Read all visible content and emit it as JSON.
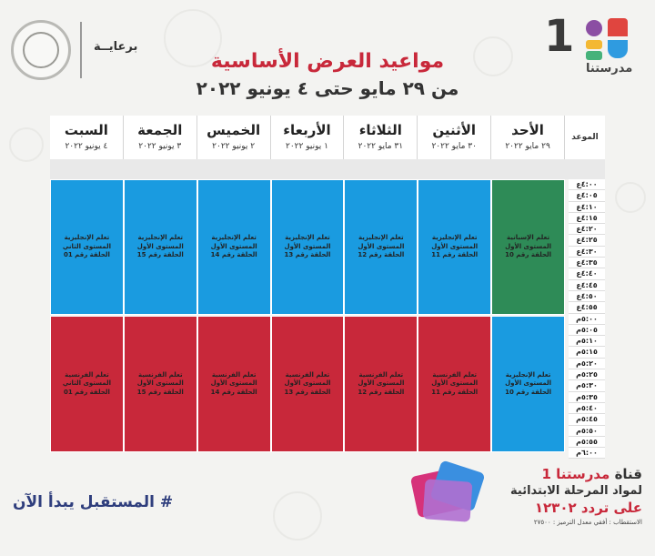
{
  "sponsor_label": "برعايــة",
  "brand": {
    "name": "مدرستنا",
    "number": "1"
  },
  "title": {
    "line1": "مواعيد العرض الأساسية",
    "line2": "من ٢٩ مايو حتى ٤ يونيو ٢٠٢٢"
  },
  "schedule": {
    "time_header": "الموعد",
    "days": [
      {
        "day": "الأحد",
        "date": "٢٩ مايو ٢٠٢٢"
      },
      {
        "day": "الأثنين",
        "date": "٣٠ مايو ٢٠٢٢"
      },
      {
        "day": "الثلاثاء",
        "date": "٣١ مايو ٢٠٢٢"
      },
      {
        "day": "الأربعاء",
        "date": "١ يونيو ٢٠٢٢"
      },
      {
        "day": "الخميس",
        "date": "٢ يونيو ٢٠٢٢"
      },
      {
        "day": "الجمعة",
        "date": "٣ يونيو ٢٠٢٢"
      },
      {
        "day": "السبت",
        "date": "٤ يونيو ٢٠٢٢"
      }
    ],
    "times": [
      "٤:٠٠ع",
      "٤:٠٥ع",
      "٤:١٠ع",
      "٤:١٥ع",
      "٤:٢٠ع",
      "٤:٢٥ع",
      "٤:٣٠ع",
      "٤:٣٥ع",
      "٤:٤٠ع",
      "٤:٤٥ع",
      "٤:٥٠ع",
      "٤:٥٥ع",
      "٥:٠٠م",
      "٥:٠٥م",
      "٥:١٠م",
      "٥:١٥م",
      "٥:٢٠م",
      "٥:٢٥م",
      "٥:٣٠م",
      "٥:٣٥م",
      "٥:٤٠م",
      "٥:٤٥م",
      "٥:٥٠م",
      "٥:٥٥م",
      "٦:٠٠م"
    ],
    "top_blocks": [
      {
        "lines": [
          "تعلم الإسبانية",
          "المستوى الأول",
          "الحلقة رقم 10"
        ],
        "color": "#2e8b57"
      },
      {
        "lines": [
          "تعلم الإنجليزية",
          "المستوى الأول",
          "الحلقة رقم 11"
        ],
        "color": "#1a9be0"
      },
      {
        "lines": [
          "تعلم الإنجليزية",
          "المستوى الأول",
          "الحلقة رقم 12"
        ],
        "color": "#1a9be0"
      },
      {
        "lines": [
          "تعلم الإنجليزية",
          "المستوى الأول",
          "الحلقة رقم 13"
        ],
        "color": "#1a9be0"
      },
      {
        "lines": [
          "تعلم الإنجليزية",
          "المستوى الأول",
          "الحلقة رقم 14"
        ],
        "color": "#1a9be0"
      },
      {
        "lines": [
          "تعلم الإنجليزية",
          "المستوى الأول",
          "الحلقة رقم 15"
        ],
        "color": "#1a9be0"
      },
      {
        "lines": [
          "تعلم الإنجليزية",
          "المستوى الثاني",
          "الحلقة رقم 01"
        ],
        "color": "#1a9be0"
      }
    ],
    "bottom_blocks": [
      {
        "lines": [
          "تعلم الإنجليزية",
          "المستوى الأول",
          "الحلقة رقم 10"
        ],
        "color": "#1a9be0"
      },
      {
        "lines": [
          "تعلم الفرنسية",
          "المستوى الأول",
          "الحلقة رقم 11"
        ],
        "color": "#c8283a"
      },
      {
        "lines": [
          "تعلم الفرنسية",
          "المستوى الأول",
          "الحلقة رقم 12"
        ],
        "color": "#c8283a"
      },
      {
        "lines": [
          "تعلم الفرنسية",
          "المستوى الأول",
          "الحلقة رقم 13"
        ],
        "color": "#c8283a"
      },
      {
        "lines": [
          "تعلم الفرنسية",
          "المستوى الأول",
          "الحلقة رقم 14"
        ],
        "color": "#c8283a"
      },
      {
        "lines": [
          "تعلم الفرنسية",
          "المستوى الأول",
          "الحلقة رقم 15"
        ],
        "color": "#c8283a"
      },
      {
        "lines": [
          "تعلم الفرنسية",
          "المستوى الثاني",
          "الحلقة رقم 01"
        ],
        "color": "#c8283a"
      }
    ]
  },
  "footer": {
    "hashtag": "# المستقبل يبدأ الآن",
    "channel_prefix": "قناة",
    "channel_name": "مدرستنا 1",
    "channel_line2": "لمواد المرحلة الابتدائية",
    "channel_line3": "على تردد ١٢٣٠٢",
    "channel_line4": "الاستقطاب : أفقي معدل الترميز : ٢٧٥٠٠"
  },
  "colors": {
    "accent_red": "#c8283a",
    "blue_block": "#1a9be0",
    "green_block": "#2e8b57",
    "navy_text": "#2f3e7d"
  }
}
